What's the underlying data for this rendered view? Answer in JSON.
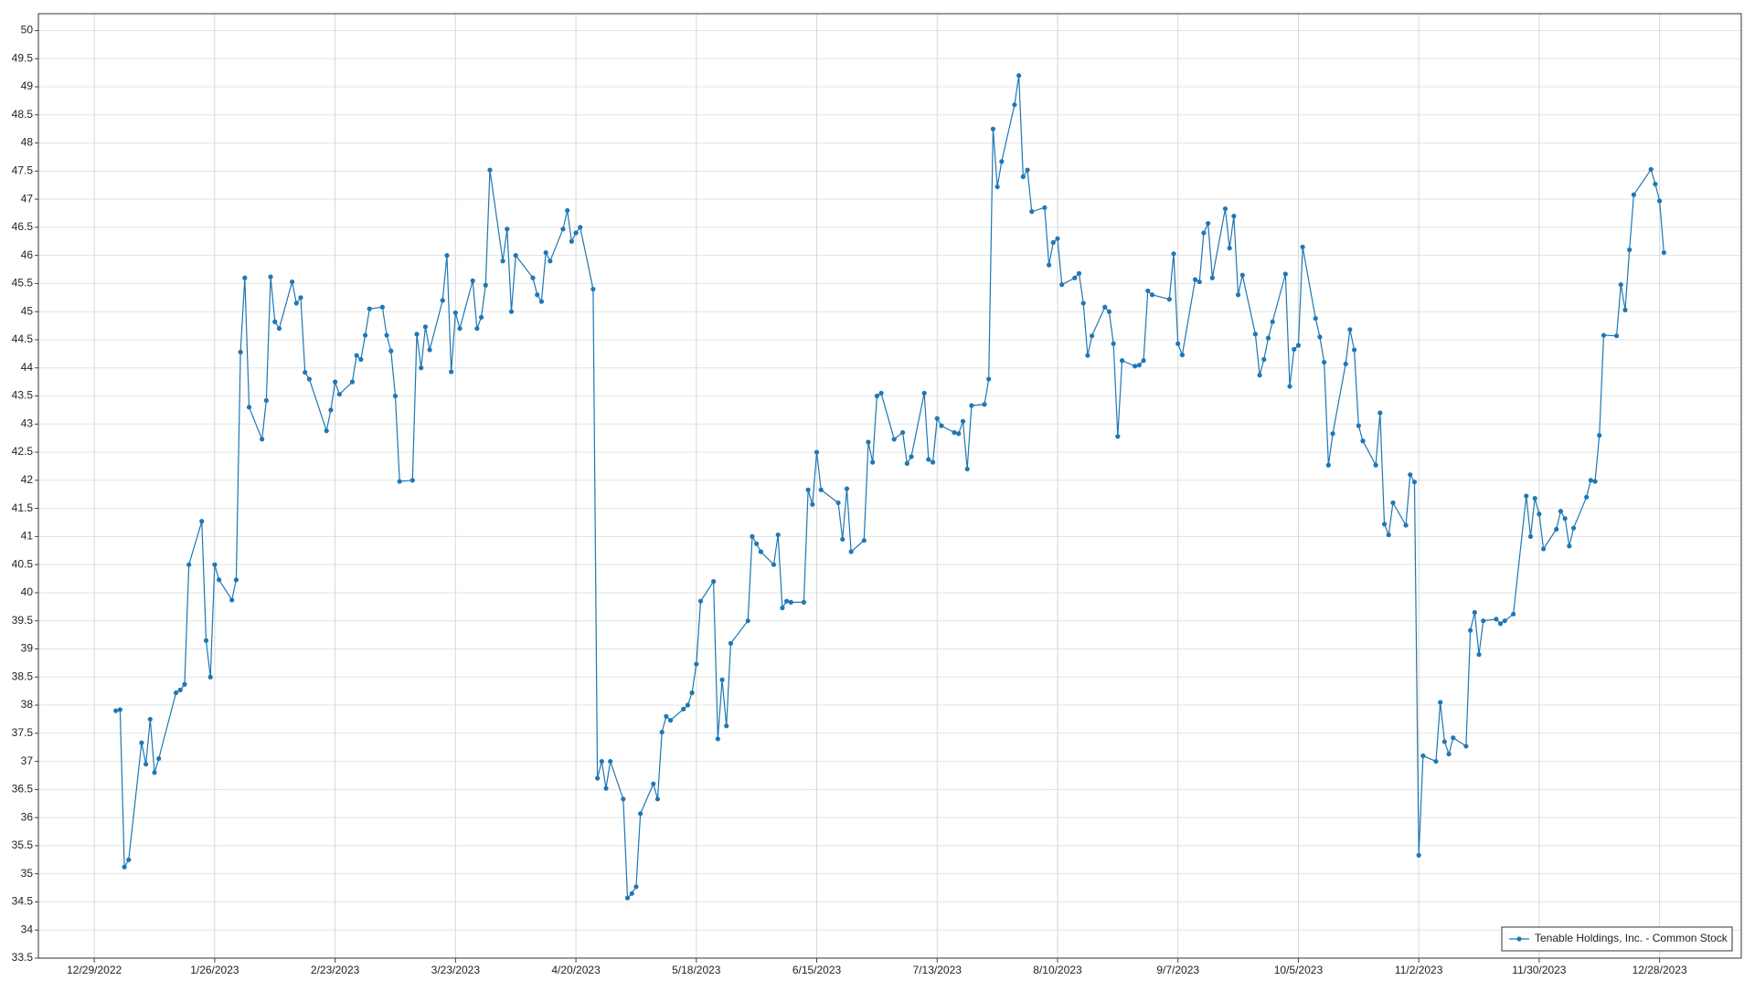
{
  "chart_data": {
    "type": "line",
    "x": [
      "2023-01-03",
      "2023-01-04",
      "2023-01-05",
      "2023-01-06",
      "2023-01-09",
      "2023-01-10",
      "2023-01-11",
      "2023-01-12",
      "2023-01-13",
      "2023-01-17",
      "2023-01-18",
      "2023-01-19",
      "2023-01-20",
      "2023-01-23",
      "2023-01-24",
      "2023-01-25",
      "2023-01-26",
      "2023-01-27",
      "2023-01-30",
      "2023-01-31",
      "2023-02-01",
      "2023-02-02",
      "2023-02-03",
      "2023-02-06",
      "2023-02-07",
      "2023-02-08",
      "2023-02-09",
      "2023-02-10",
      "2023-02-13",
      "2023-02-14",
      "2023-02-15",
      "2023-02-16",
      "2023-02-17",
      "2023-02-21",
      "2023-02-22",
      "2023-02-23",
      "2023-02-24",
      "2023-02-27",
      "2023-02-28",
      "2023-03-01",
      "2023-03-02",
      "2023-03-03",
      "2023-03-06",
      "2023-03-07",
      "2023-03-08",
      "2023-03-09",
      "2023-03-10",
      "2023-03-13",
      "2023-03-14",
      "2023-03-15",
      "2023-03-16",
      "2023-03-17",
      "2023-03-20",
      "2023-03-21",
      "2023-03-22",
      "2023-03-23",
      "2023-03-24",
      "2023-03-27",
      "2023-03-28",
      "2023-03-29",
      "2023-03-30",
      "2023-03-31",
      "2023-04-03",
      "2023-04-04",
      "2023-04-05",
      "2023-04-06",
      "2023-04-10",
      "2023-04-11",
      "2023-04-12",
      "2023-04-13",
      "2023-04-14",
      "2023-04-17",
      "2023-04-18",
      "2023-04-19",
      "2023-04-20",
      "2023-04-21",
      "2023-04-24",
      "2023-04-25",
      "2023-04-26",
      "2023-04-27",
      "2023-04-28",
      "2023-05-01",
      "2023-05-02",
      "2023-05-03",
      "2023-05-04",
      "2023-05-05",
      "2023-05-08",
      "2023-05-09",
      "2023-05-10",
      "2023-05-11",
      "2023-05-12",
      "2023-05-15",
      "2023-05-16",
      "2023-05-17",
      "2023-05-18",
      "2023-05-19",
      "2023-05-22",
      "2023-05-23",
      "2023-05-24",
      "2023-05-25",
      "2023-05-26",
      "2023-05-30",
      "2023-05-31",
      "2023-06-01",
      "2023-06-02",
      "2023-06-05",
      "2023-06-06",
      "2023-06-07",
      "2023-06-08",
      "2023-06-09",
      "2023-06-12",
      "2023-06-13",
      "2023-06-14",
      "2023-06-15",
      "2023-06-16",
      "2023-06-20",
      "2023-06-21",
      "2023-06-22",
      "2023-06-23",
      "2023-06-26",
      "2023-06-27",
      "2023-06-28",
      "2023-06-29",
      "2023-06-30",
      "2023-07-03",
      "2023-07-05",
      "2023-07-06",
      "2023-07-07",
      "2023-07-10",
      "2023-07-11",
      "2023-07-12",
      "2023-07-13",
      "2023-07-14",
      "2023-07-17",
      "2023-07-18",
      "2023-07-19",
      "2023-07-20",
      "2023-07-21",
      "2023-07-24",
      "2023-07-25",
      "2023-07-26",
      "2023-07-27",
      "2023-07-28",
      "2023-07-31",
      "2023-08-01",
      "2023-08-02",
      "2023-08-03",
      "2023-08-04",
      "2023-08-07",
      "2023-08-08",
      "2023-08-09",
      "2023-08-10",
      "2023-08-11",
      "2023-08-14",
      "2023-08-15",
      "2023-08-16",
      "2023-08-17",
      "2023-08-18",
      "2023-08-21",
      "2023-08-22",
      "2023-08-23",
      "2023-08-24",
      "2023-08-25",
      "2023-08-28",
      "2023-08-29",
      "2023-08-30",
      "2023-08-31",
      "2023-09-01",
      "2023-09-05",
      "2023-09-06",
      "2023-09-07",
      "2023-09-08",
      "2023-09-11",
      "2023-09-12",
      "2023-09-13",
      "2023-09-14",
      "2023-09-15",
      "2023-09-18",
      "2023-09-19",
      "2023-09-20",
      "2023-09-21",
      "2023-09-22",
      "2023-09-25",
      "2023-09-26",
      "2023-09-27",
      "2023-09-28",
      "2023-09-29",
      "2023-10-02",
      "2023-10-03",
      "2023-10-04",
      "2023-10-05",
      "2023-10-06",
      "2023-10-09",
      "2023-10-10",
      "2023-10-11",
      "2023-10-12",
      "2023-10-13",
      "2023-10-16",
      "2023-10-17",
      "2023-10-18",
      "2023-10-19",
      "2023-10-20",
      "2023-10-23",
      "2023-10-24",
      "2023-10-25",
      "2023-10-26",
      "2023-10-27",
      "2023-10-30",
      "2023-10-31",
      "2023-11-01",
      "2023-11-02",
      "2023-11-03",
      "2023-11-06",
      "2023-11-07",
      "2023-11-08",
      "2023-11-09",
      "2023-11-10",
      "2023-11-13",
      "2023-11-14",
      "2023-11-15",
      "2023-11-16",
      "2023-11-17",
      "2023-11-20",
      "2023-11-21",
      "2023-11-22",
      "2023-11-24",
      "2023-11-27",
      "2023-11-28",
      "2023-11-29",
      "2023-11-30",
      "2023-12-01",
      "2023-12-04",
      "2023-12-05",
      "2023-12-06",
      "2023-12-07",
      "2023-12-08",
      "2023-12-11",
      "2023-12-12",
      "2023-12-13",
      "2023-12-14",
      "2023-12-15",
      "2023-12-18",
      "2023-12-19",
      "2023-12-20",
      "2023-12-21",
      "2023-12-22",
      "2023-12-26",
      "2023-12-27",
      "2023-12-28",
      "2023-12-29"
    ],
    "series": [
      {
        "name": "Tenable Holdings, Inc. - Common Stock",
        "color": "#1f77b4",
        "values": [
          37.9,
          37.92,
          35.12,
          35.25,
          37.33,
          36.95,
          37.75,
          36.8,
          37.05,
          38.22,
          38.27,
          38.37,
          40.5,
          41.27,
          39.15,
          38.5,
          40.5,
          40.23,
          39.87,
          40.23,
          44.28,
          45.6,
          43.3,
          42.73,
          43.42,
          45.62,
          44.82,
          44.7,
          45.53,
          45.15,
          45.25,
          43.92,
          43.8,
          42.88,
          43.25,
          43.75,
          43.53,
          43.75,
          44.22,
          44.15,
          44.58,
          45.05,
          45.08,
          44.58,
          44.3,
          43.5,
          41.98,
          42.0,
          44.6,
          44.0,
          44.73,
          44.32,
          45.2,
          46.0,
          43.93,
          44.98,
          44.7,
          45.55,
          44.7,
          44.9,
          45.47,
          47.52,
          45.9,
          46.47,
          45.0,
          46.0,
          45.6,
          45.3,
          45.18,
          46.05,
          45.9,
          46.47,
          46.8,
          46.25,
          46.4,
          46.5,
          45.4,
          36.7,
          37.0,
          36.52,
          37.0,
          36.33,
          34.57,
          34.65,
          34.77,
          36.07,
          36.6,
          36.33,
          37.52,
          37.8,
          37.73,
          37.93,
          38.0,
          38.22,
          38.73,
          39.85,
          40.2,
          37.4,
          38.45,
          37.63,
          39.1,
          39.5,
          41.0,
          40.87,
          40.73,
          40.5,
          41.03,
          39.73,
          39.85,
          39.83,
          39.83,
          41.83,
          41.57,
          42.5,
          41.83,
          41.6,
          40.95,
          41.85,
          40.73,
          40.93,
          42.68,
          42.32,
          43.5,
          43.55,
          42.73,
          42.85,
          42.3,
          42.42,
          43.55,
          42.37,
          42.32,
          43.1,
          42.97,
          42.85,
          42.83,
          43.05,
          42.2,
          43.33,
          43.35,
          43.8,
          48.25,
          47.22,
          47.67,
          48.68,
          49.2,
          47.4,
          47.52,
          46.78,
          46.85,
          45.83,
          46.23,
          46.3,
          45.48,
          45.6,
          45.68,
          45.15,
          44.22,
          44.57,
          45.08,
          45.0,
          44.43,
          42.78,
          44.13,
          44.03,
          44.05,
          44.13,
          45.37,
          45.3,
          45.22,
          46.03,
          44.43,
          44.23,
          45.57,
          45.53,
          46.4,
          46.57,
          45.6,
          46.83,
          46.13,
          46.7,
          45.3,
          45.65,
          44.6,
          43.87,
          44.15,
          44.53,
          44.82,
          45.67,
          43.67,
          44.33,
          44.4,
          46.15,
          44.88,
          44.55,
          44.1,
          42.27,
          42.83,
          44.07,
          44.68,
          44.32,
          42.97,
          42.7,
          42.27,
          43.2,
          41.22,
          41.03,
          41.6,
          41.2,
          42.1,
          41.97,
          35.33,
          37.1,
          37.0,
          38.05,
          37.35,
          37.13,
          37.42,
          37.27,
          39.33,
          39.65,
          38.9,
          39.5,
          39.53,
          39.45,
          39.5,
          39.62,
          41.72,
          41.0,
          41.68,
          41.4,
          40.78,
          41.13,
          41.45,
          41.32,
          40.83,
          41.15,
          41.7,
          42.0,
          41.98,
          42.8,
          44.58,
          44.57,
          45.48,
          45.03,
          46.1,
          47.08,
          47.53,
          47.27,
          46.97,
          46.05
        ]
      }
    ],
    "xlim": [
      "2022-12-16",
      "2024-01-16"
    ],
    "xticks": [
      {
        "value": "2022-12-29",
        "label": "12/29/2022"
      },
      {
        "value": "2023-01-26",
        "label": "1/26/2023"
      },
      {
        "value": "2023-02-23",
        "label": "2/23/2023"
      },
      {
        "value": "2023-03-23",
        "label": "3/23/2023"
      },
      {
        "value": "2023-04-20",
        "label": "4/20/2023"
      },
      {
        "value": "2023-05-18",
        "label": "5/18/2023"
      },
      {
        "value": "2023-06-15",
        "label": "6/15/2023"
      },
      {
        "value": "2023-07-13",
        "label": "7/13/2023"
      },
      {
        "value": "2023-08-10",
        "label": "8/10/2023"
      },
      {
        "value": "2023-09-07",
        "label": "9/7/2023"
      },
      {
        "value": "2023-10-05",
        "label": "10/5/2023"
      },
      {
        "value": "2023-11-02",
        "label": "11/2/2023"
      },
      {
        "value": "2023-11-30",
        "label": "11/30/2023"
      },
      {
        "value": "2023-12-28",
        "label": "12/28/2023"
      }
    ],
    "ylim": [
      33.5,
      50.3
    ],
    "yticks": [
      33.5,
      34,
      34.5,
      35,
      35.5,
      36,
      36.5,
      37,
      37.5,
      38,
      38.5,
      39,
      39.5,
      40,
      40.5,
      41,
      41.5,
      42,
      42.5,
      43,
      43.5,
      44,
      44.5,
      45,
      45.5,
      46,
      46.5,
      47,
      47.5,
      48,
      48.5,
      49,
      49.5,
      50
    ],
    "grid": true,
    "legend": "lower right"
  }
}
